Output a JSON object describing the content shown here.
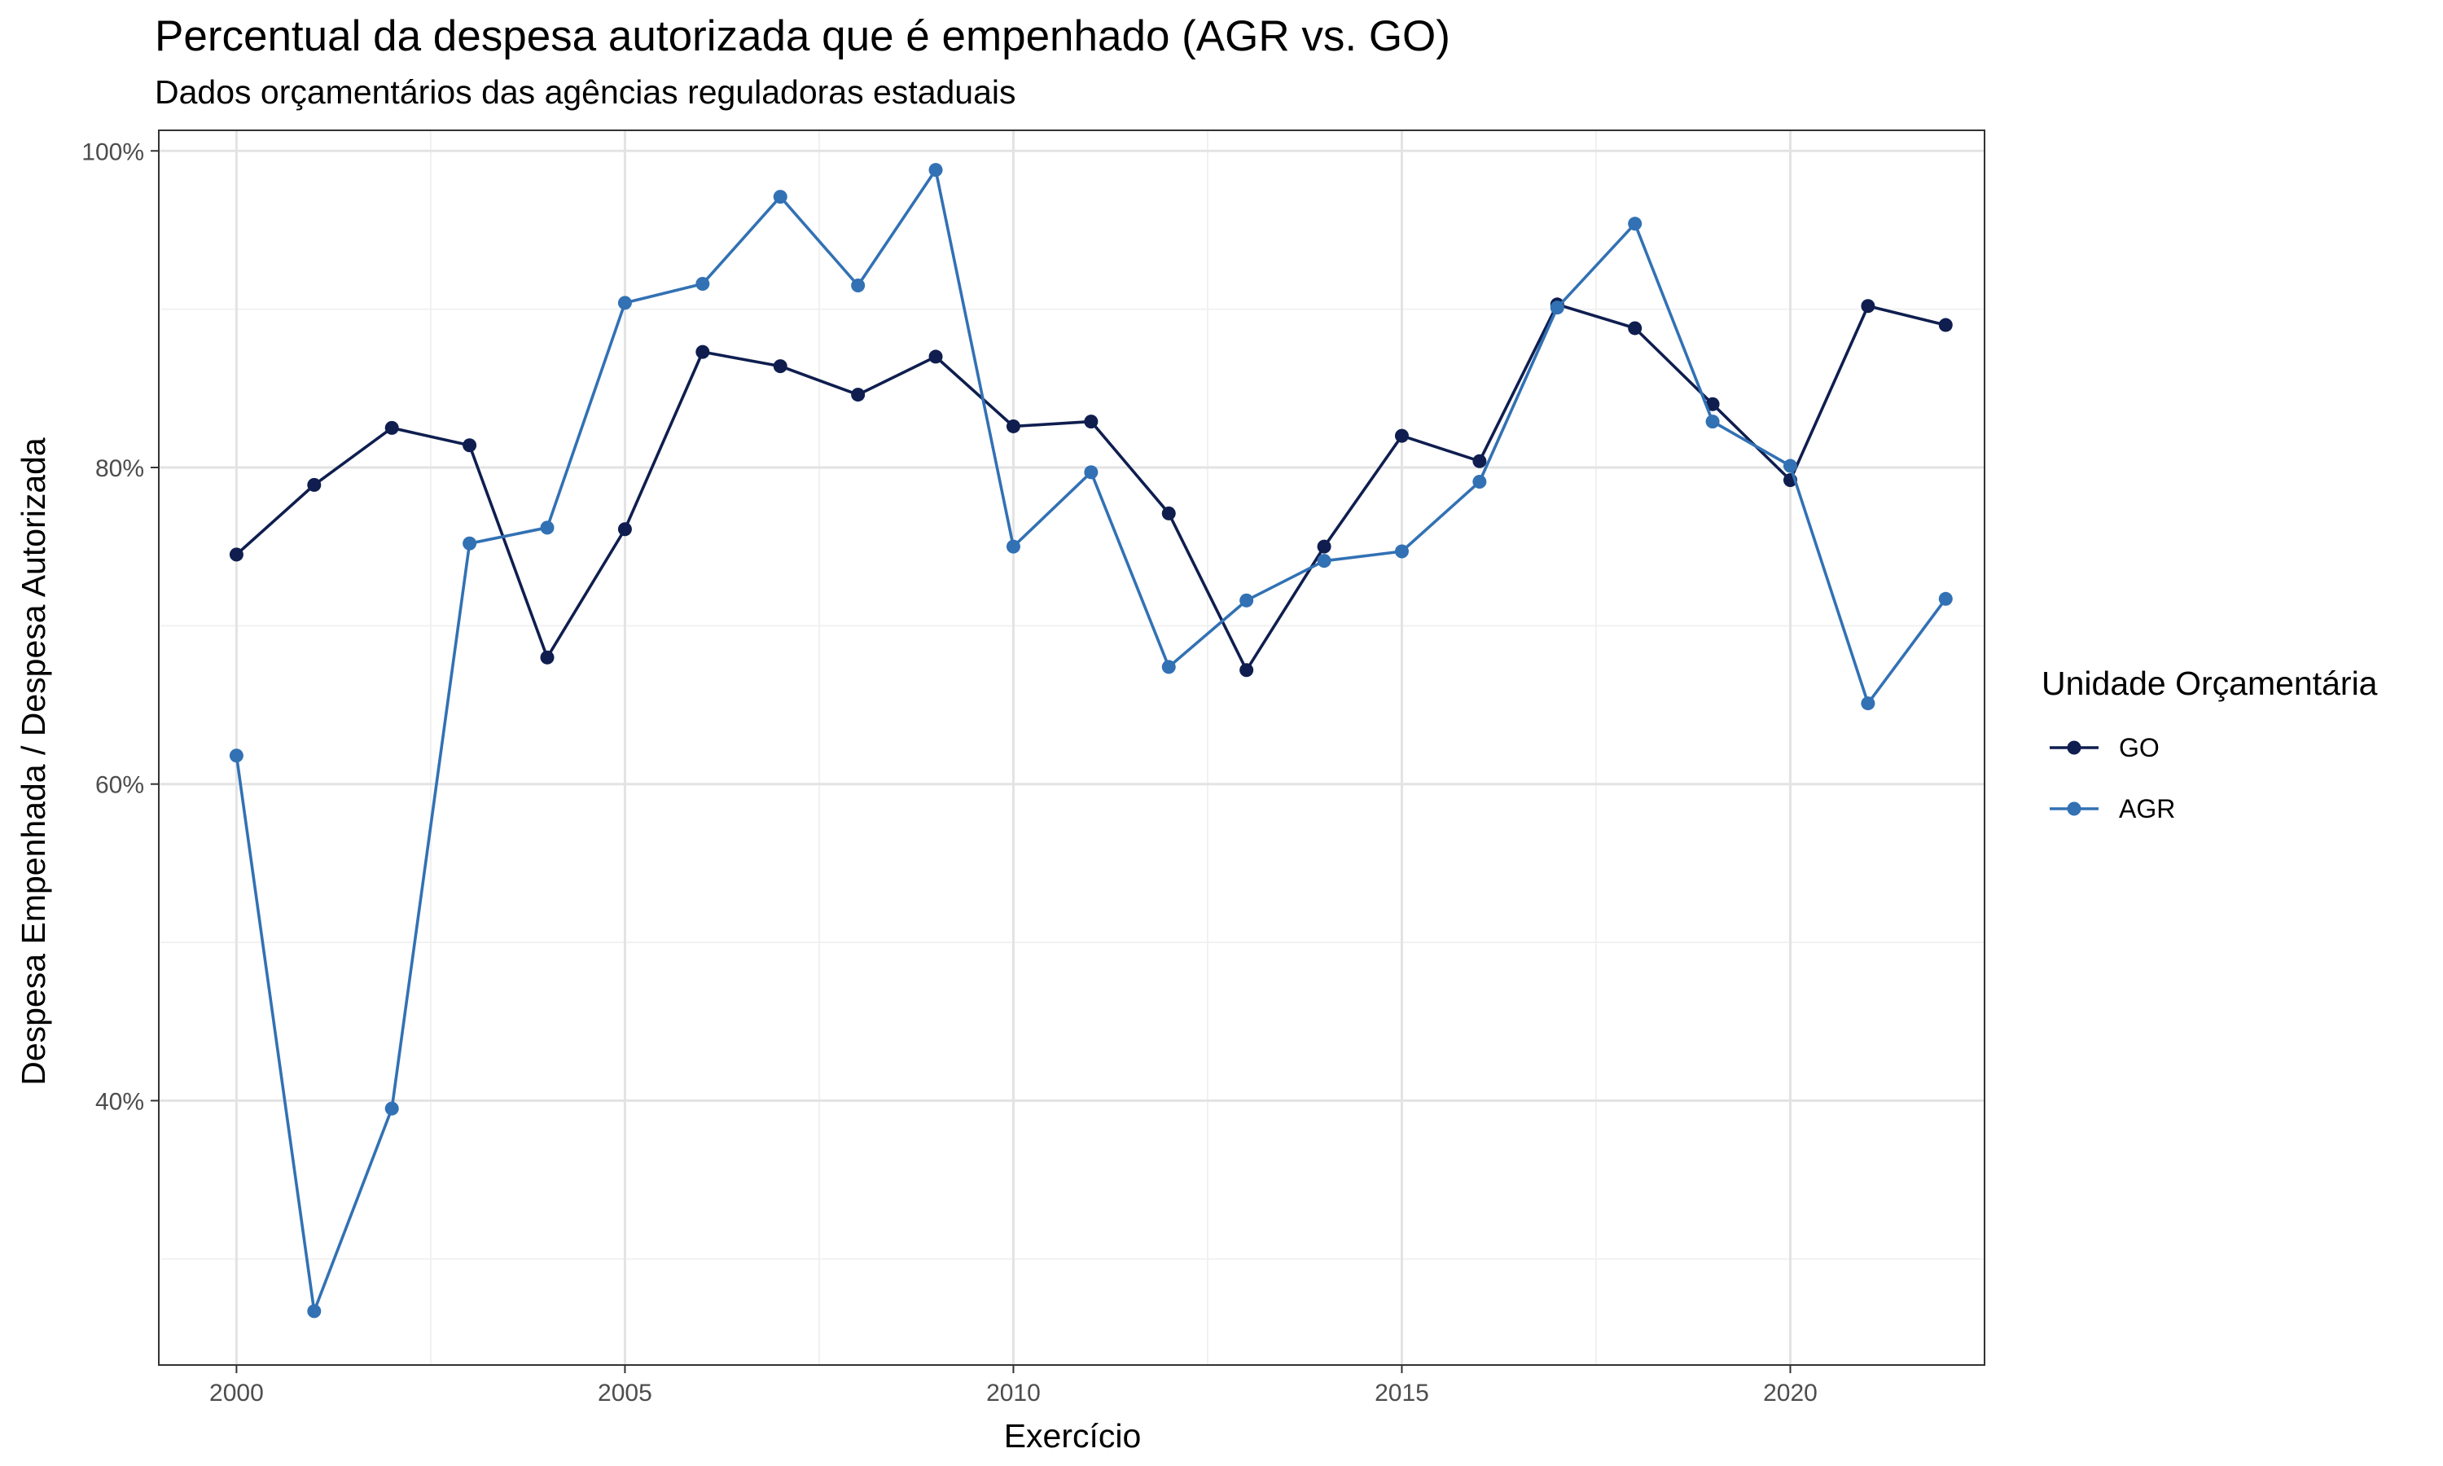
{
  "chart_data": {
    "type": "line",
    "title": "Percentual da despesa autorizada que é empenhado (AGR vs. GO)",
    "subtitle": "Dados orçamentários das agências reguladoras estaduais",
    "xlabel": "Exercício",
    "ylabel": "Despesa Empenhada / Despesa Autorizada",
    "legend_title": "Unidade Orçamentária",
    "legend_position": "right",
    "grid": true,
    "x": [
      2000,
      2001,
      2002,
      2003,
      2004,
      2005,
      2006,
      2007,
      2008,
      2009,
      2010,
      2011,
      2012,
      2013,
      2014,
      2015,
      2016,
      2017,
      2018,
      2019,
      2020,
      2021,
      2022
    ],
    "xlim": [
      1999,
      2022.5
    ],
    "ylim": [
      0.233,
      1.013
    ],
    "x_ticks": [
      2000,
      2005,
      2010,
      2015,
      2020
    ],
    "x_tick_labels": [
      "2000",
      "2005",
      "2010",
      "2015",
      "2020"
    ],
    "y_ticks": [
      0.4,
      0.6,
      0.8,
      1.0
    ],
    "y_tick_labels": [
      "40%",
      "60%",
      "80%",
      "100%"
    ],
    "series": [
      {
        "name": "GO",
        "color": "#0f1e4f",
        "values": [
          0.745,
          0.789,
          0.825,
          0.814,
          0.68,
          0.761,
          0.873,
          0.864,
          0.846,
          0.87,
          0.826,
          0.829,
          0.771,
          0.672,
          0.75,
          0.82,
          0.804,
          0.903,
          0.888,
          0.84,
          0.792,
          0.902,
          0.89
        ]
      },
      {
        "name": "AGR",
        "color": "#3271b4",
        "values": [
          0.618,
          0.267,
          0.395,
          0.752,
          0.762,
          0.904,
          0.916,
          0.971,
          0.915,
          0.988,
          0.75,
          0.797,
          0.674,
          0.716,
          0.741,
          0.747,
          0.791,
          0.901,
          0.954,
          0.829,
          0.801,
          0.651,
          0.717
        ]
      }
    ]
  }
}
